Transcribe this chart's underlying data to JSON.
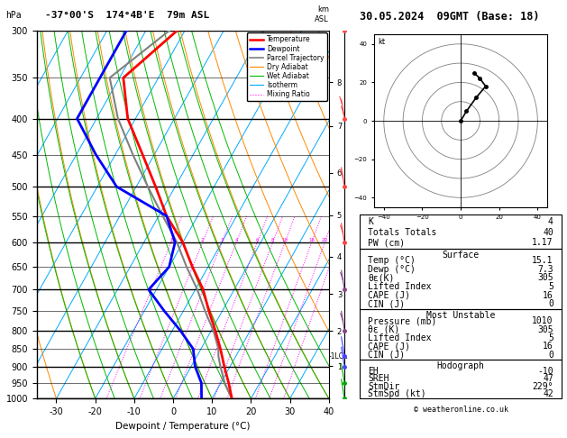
{
  "title_left": "-37°00'S  174°4B'E  79m ASL",
  "title_right": "30.05.2024  09GMT (Base: 18)",
  "xlabel": "Dewpoint / Temperature (°C)",
  "ylabel_left": "hPa",
  "pressure_levels": [
    300,
    350,
    400,
    450,
    500,
    550,
    600,
    650,
    700,
    750,
    800,
    850,
    900,
    950,
    1000
  ],
  "pressure_major": [
    300,
    400,
    500,
    600,
    700,
    800,
    900,
    1000
  ],
  "temp_x_ticks": [
    -30,
    -20,
    -10,
    0,
    10,
    20,
    30,
    40
  ],
  "temp_profile": {
    "pressure": [
      1000,
      950,
      900,
      850,
      800,
      750,
      700,
      650,
      600,
      550,
      500,
      450,
      400,
      350,
      300
    ],
    "temp": [
      15.1,
      12.0,
      8.5,
      5.0,
      1.0,
      -3.5,
      -8.0,
      -14.0,
      -20.0,
      -28.0,
      -35.0,
      -43.0,
      -52.0,
      -59.0,
      -52.0
    ]
  },
  "dewpoint_profile": {
    "pressure": [
      1000,
      950,
      900,
      850,
      800,
      750,
      700,
      650,
      600,
      550,
      500,
      450,
      400,
      350,
      300
    ],
    "temp": [
      7.3,
      5.0,
      1.0,
      -2.0,
      -8.0,
      -15.0,
      -22.0,
      -20.0,
      -22.0,
      -28.0,
      -45.0,
      -55.0,
      -65.0,
      -65.0,
      -65.0
    ]
  },
  "parcel_profile": {
    "pressure": [
      1000,
      950,
      900,
      870,
      850,
      800,
      750,
      700,
      650,
      600,
      550,
      500,
      450,
      400,
      350,
      300
    ],
    "temp": [
      15.1,
      11.0,
      7.5,
      5.5,
      4.5,
      0.5,
      -4.5,
      -9.5,
      -15.5,
      -21.5,
      -29.0,
      -37.0,
      -45.5,
      -54.5,
      -62.5,
      -54.0
    ]
  },
  "lcl_pressure": 870,
  "mixing_ratio_lines": [
    1,
    2,
    3,
    4,
    6,
    8,
    10,
    16,
    20,
    25
  ],
  "km_labels": {
    "km": [
      1,
      2,
      3,
      4,
      5,
      6,
      7,
      8
    ],
    "pressure": [
      899,
      802,
      710,
      628,
      549,
      478,
      410,
      355
    ]
  },
  "wind_barbs": {
    "pressure": [
      300,
      400,
      500,
      600,
      700,
      800,
      870,
      900,
      950,
      1000
    ],
    "colors": [
      "#ff4444",
      "#ff4444",
      "#ff4444",
      "#ff4444",
      "#884488",
      "#884488",
      "#4444ff",
      "#4444ff",
      "#00aa00",
      "#00aa00"
    ],
    "u": [
      28,
      22,
      18,
      15,
      12,
      10,
      8,
      8,
      6,
      5
    ],
    "v": [
      5,
      5,
      5,
      5,
      5,
      5,
      5,
      5,
      5,
      5
    ]
  },
  "colors": {
    "temperature": "#ff0000",
    "dewpoint": "#0000ff",
    "parcel": "#808080",
    "dry_adiabat": "#ff8800",
    "wet_adiabat": "#00bb00",
    "isotherm": "#00aaff",
    "mixing_ratio": "#ff00ff",
    "background": "#ffffff"
  },
  "legend_items": [
    "Temperature",
    "Dewpoint",
    "Parcel Trajectory",
    "Dry Adiabat",
    "Wet Adiabat",
    "Isotherm",
    "Mixing Ratio"
  ],
  "stats": {
    "K": 4,
    "Totals_Totals": 40,
    "PW_cm": "1.17",
    "Surface_Temp_C": "15.1",
    "Surface_Dewp_C": "7.3",
    "Surface_ThetaE_K": 305,
    "Surface_LiftedIndex": 5,
    "Surface_CAPE_J": 16,
    "Surface_CIN_J": 0,
    "MU_Pressure_mb": 1010,
    "MU_ThetaE_K": 305,
    "MU_LiftedIndex": 5,
    "MU_CAPE_J": 16,
    "MU_CIN_J": 0,
    "Hodo_EH": -10,
    "Hodo_SREH": 47,
    "Hodo_StmDir": 229,
    "Hodo_StmSpd_kt": 42
  },
  "hodo_data": {
    "u": [
      0,
      3,
      8,
      13,
      10,
      7
    ],
    "v": [
      0,
      5,
      12,
      18,
      22,
      25
    ]
  },
  "p_min": 300,
  "p_max": 1000,
  "t_min": -35,
  "t_max": 40,
  "skew_amount": 53
}
